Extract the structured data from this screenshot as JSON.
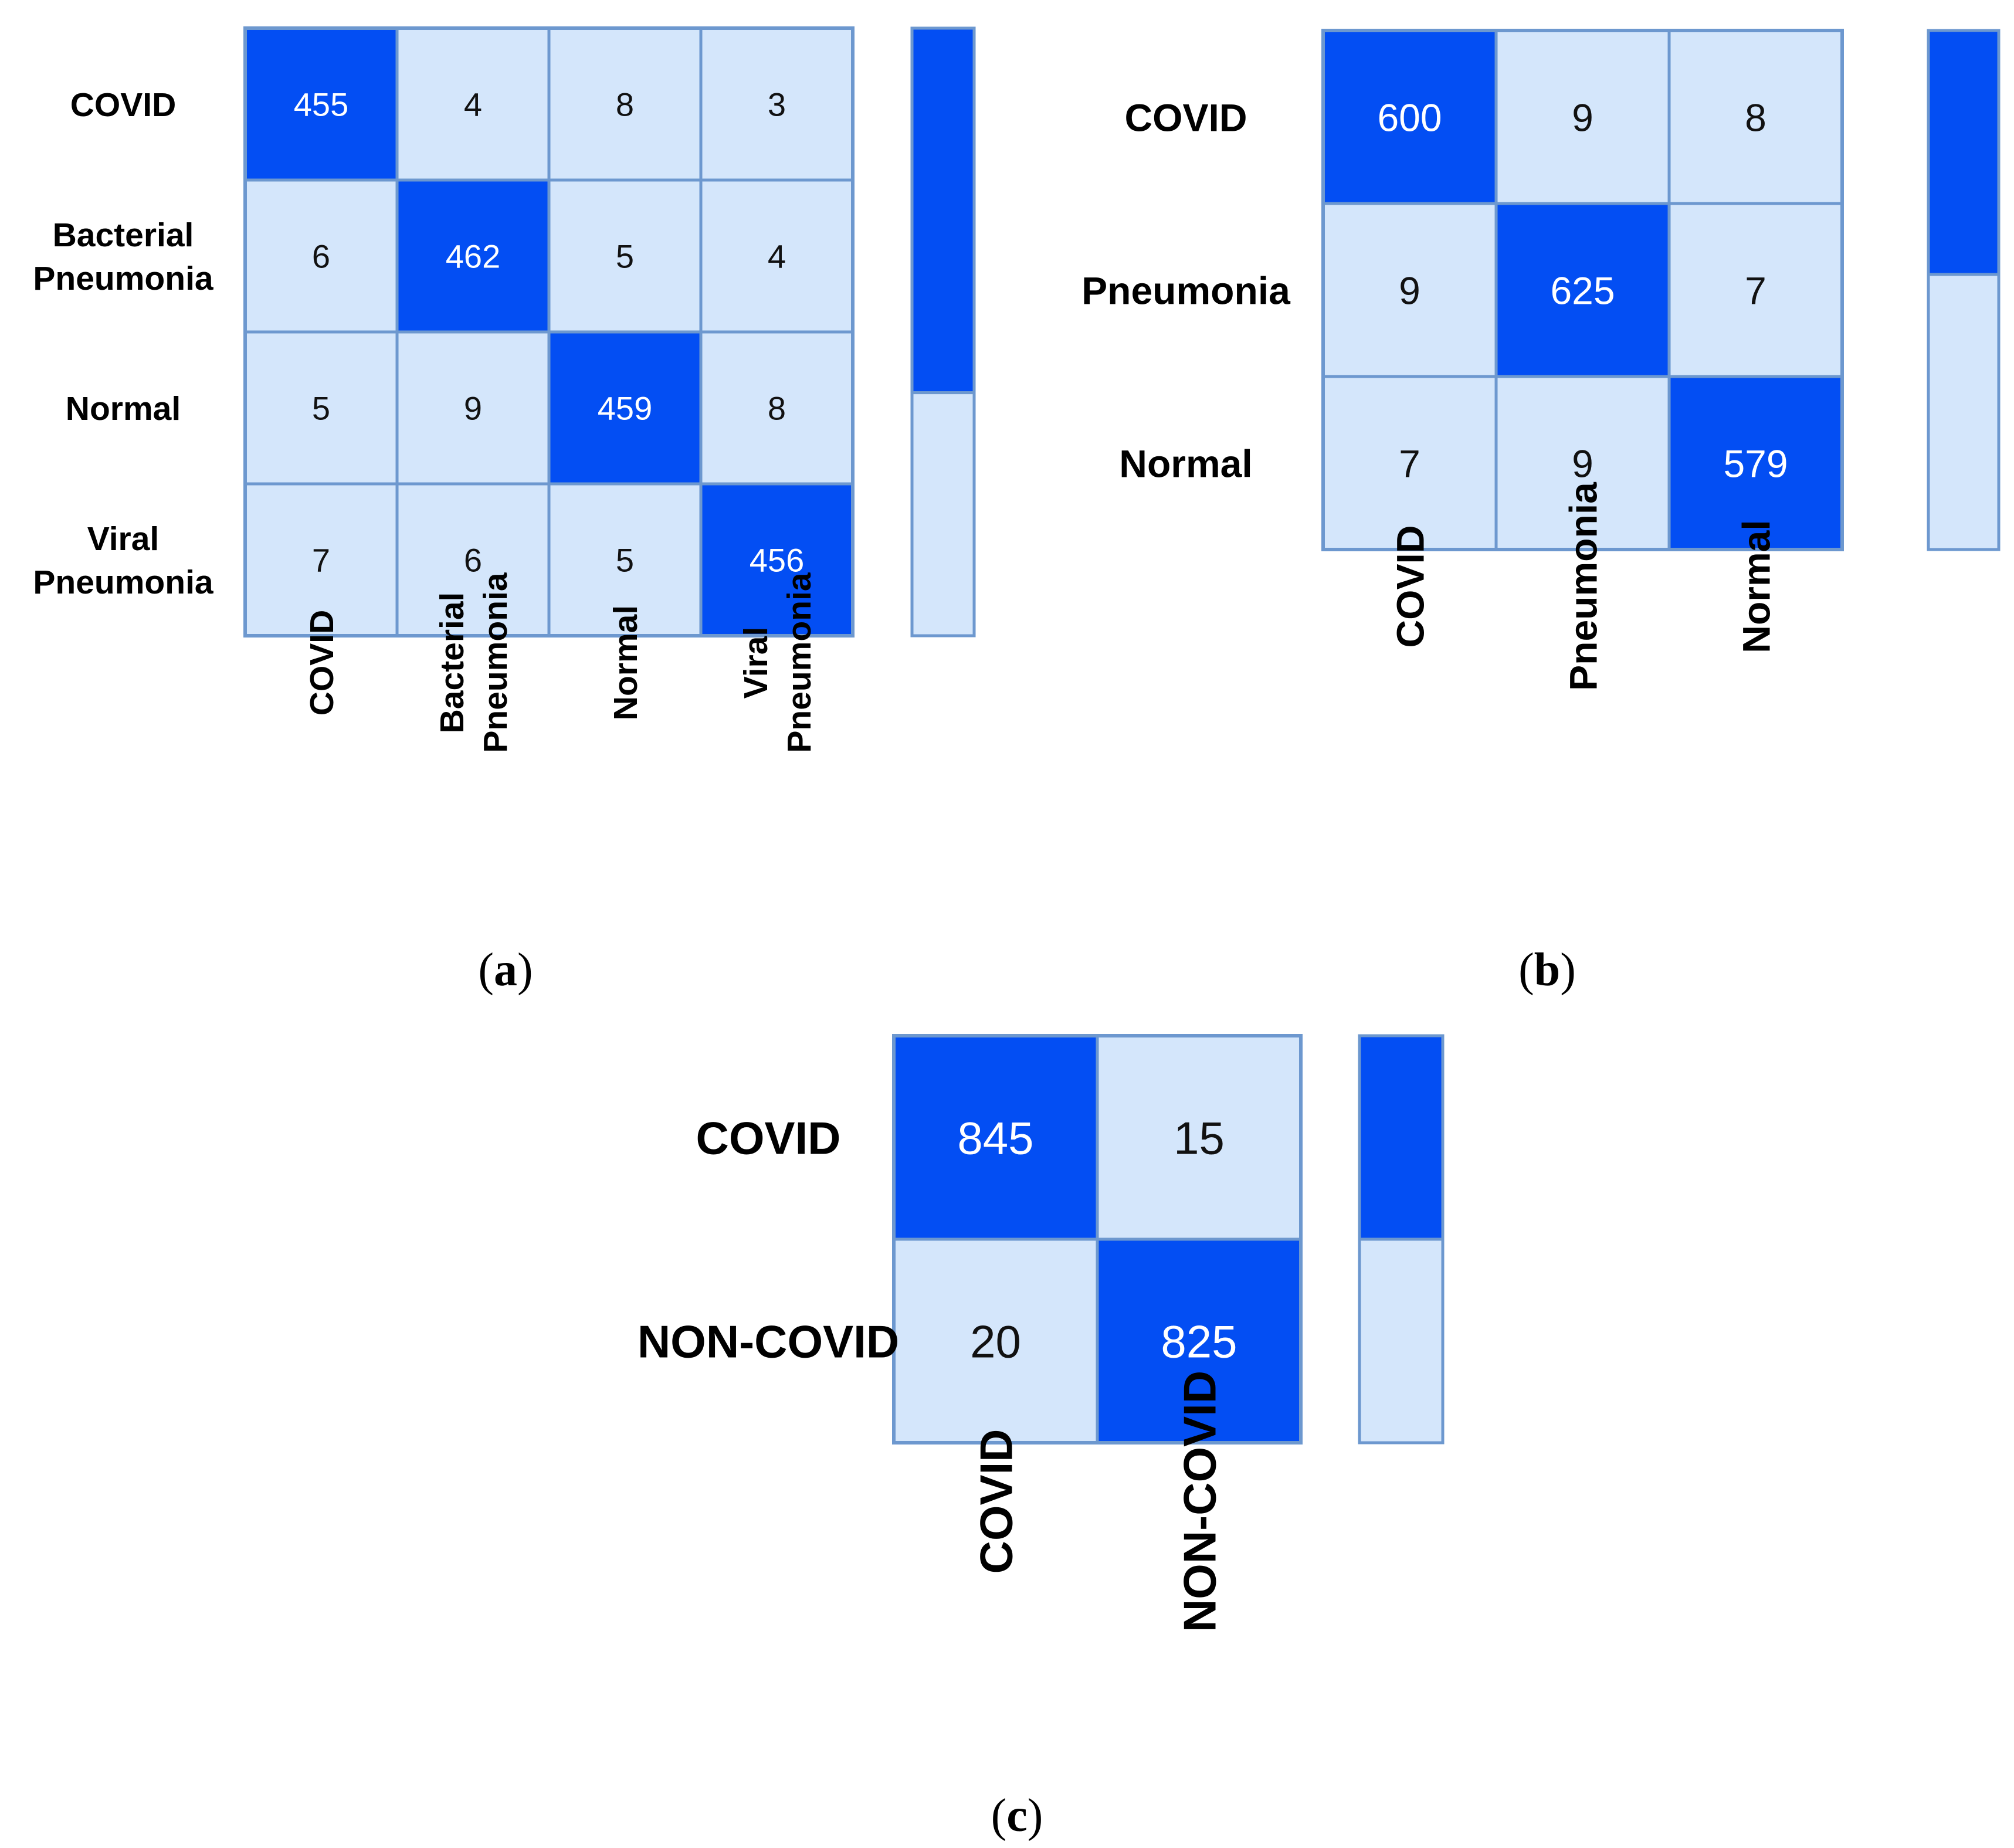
{
  "colors": {
    "high": "#034ef3",
    "low": "#d4e6fb",
    "border": "#6d98cf",
    "text_on_high": "#ffffff",
    "text_on_low": "#111111"
  },
  "chart_data": [
    {
      "type": "heatmap",
      "panel": "(a)",
      "panel_letter": "a",
      "rows": [
        "COVID",
        "Bacterial Pneumonia",
        "Normal",
        "Viral Pneumonia"
      ],
      "cols": [
        "COVID",
        "Bacterial Pneumonia",
        "Normal",
        "Viral Pneumonia"
      ],
      "values": [
        [
          455,
          4,
          8,
          3
        ],
        [
          6,
          462,
          5,
          4
        ],
        [
          5,
          9,
          459,
          8
        ],
        [
          7,
          6,
          5,
          456
        ]
      ],
      "colorbar_high_fraction": 0.6
    },
    {
      "type": "heatmap",
      "panel": "(b)",
      "panel_letter": "b",
      "rows": [
        "COVID",
        "Pneumonia",
        "Normal"
      ],
      "cols": [
        "COVID",
        "Pneumonia",
        "Normal"
      ],
      "values": [
        [
          600,
          9,
          8
        ],
        [
          9,
          625,
          7
        ],
        [
          7,
          9,
          579
        ]
      ],
      "colorbar_high_fraction": 0.47
    },
    {
      "type": "heatmap",
      "panel": "(c)",
      "panel_letter": "c",
      "rows": [
        "COVID",
        "NON-COVID"
      ],
      "cols": [
        "COVID",
        "NON-COVID"
      ],
      "values": [
        [
          845,
          15
        ],
        [
          20,
          825
        ]
      ],
      "colorbar_high_fraction": 0.5
    }
  ]
}
